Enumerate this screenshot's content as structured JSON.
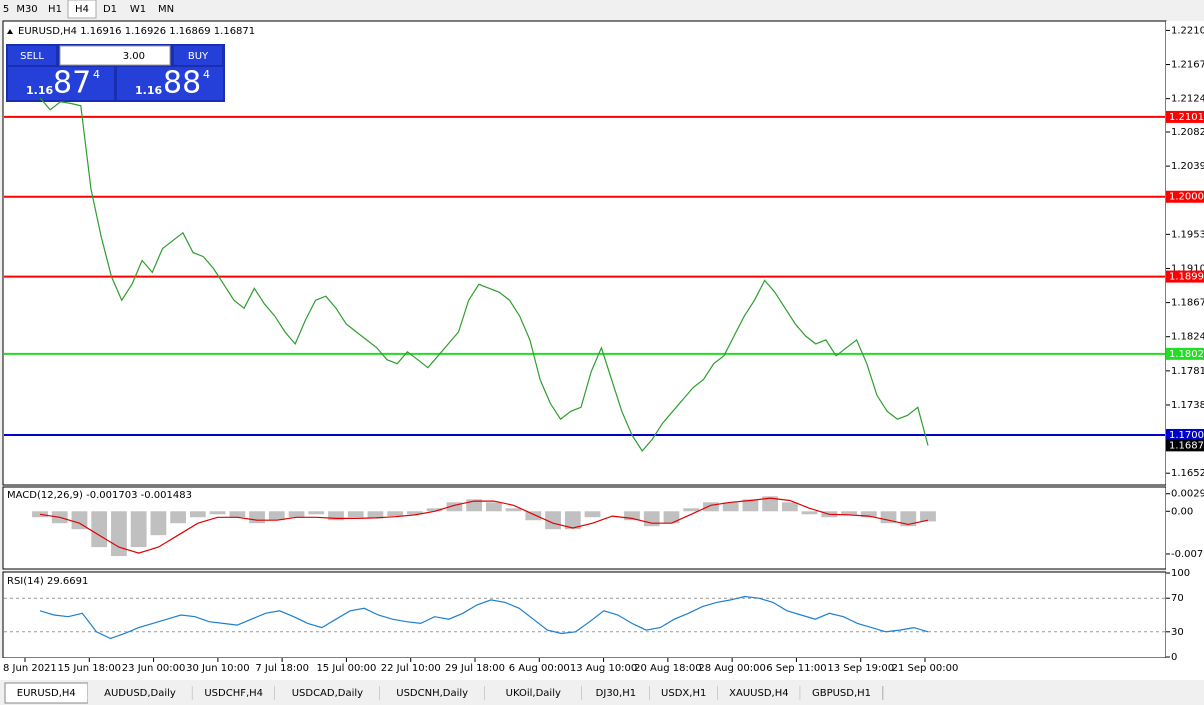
{
  "toolbar": {
    "timeframes": [
      "5",
      "M30",
      "H1",
      "H4",
      "D1",
      "W1",
      "MN"
    ],
    "active": 3
  },
  "trade_panel": {
    "sell": "SELL",
    "buy": "BUY",
    "lot": "3.00",
    "sell_price": {
      "big": "1.16",
      "main": "87",
      "sup": "4"
    },
    "buy_price": {
      "big": "1.16",
      "main": "88",
      "sup": "4"
    }
  },
  "chart_data": [
    {
      "type": "line",
      "title": "EURUSD,H4  1.16916 1.16926 1.16869 1.16871",
      "color": "#2e9e2e",
      "values": [
        1.2125,
        1.211,
        1.212,
        1.2118,
        1.2115,
        1.201,
        1.195,
        1.19,
        1.187,
        1.189,
        1.192,
        1.1905,
        1.1935,
        1.1945,
        1.1955,
        1.193,
        1.1925,
        1.191,
        1.189,
        1.187,
        1.186,
        1.1885,
        1.1865,
        1.185,
        1.183,
        1.1815,
        1.1845,
        1.187,
        1.1875,
        1.186,
        1.184,
        1.183,
        1.182,
        1.181,
        1.1795,
        1.179,
        1.1805,
        1.1795,
        1.1785,
        1.18,
        1.1815,
        1.183,
        1.187,
        1.189,
        1.1885,
        1.188,
        1.187,
        1.185,
        1.182,
        1.177,
        1.174,
        1.172,
        1.173,
        1.1735,
        1.178,
        1.181,
        1.177,
        1.173,
        1.17,
        1.168,
        1.1695,
        1.1715,
        1.173,
        1.1745,
        1.176,
        1.177,
        1.179,
        1.18,
        1.1825,
        1.185,
        1.187,
        1.1895,
        1.188,
        1.186,
        1.184,
        1.1825,
        1.1815,
        1.182,
        1.18,
        1.181,
        1.182,
        1.179,
        1.175,
        1.173,
        1.172,
        1.1725,
        1.1735,
        1.1687
      ],
      "ylim": [
        1.16384,
        1.22206
      ],
      "yticks": [
        {
          "value": 1.221,
          "label": "1.22100"
        },
        {
          "value": 1.2167,
          "label": "1.21670"
        },
        {
          "value": 1.2124,
          "label": "1.21240"
        },
        {
          "value": 1.2082,
          "label": "1.20820"
        },
        {
          "value": 1.2039,
          "label": "1.20390"
        },
        {
          "value": 1.1953,
          "label": "1.19530"
        },
        {
          "value": 1.191,
          "label": "1.19100"
        },
        {
          "value": 1.1867,
          "label": "1.18670"
        },
        {
          "value": 1.1824,
          "label": "1.18240"
        },
        {
          "value": 1.1781,
          "label": "1.17810"
        },
        {
          "value": 1.1738,
          "label": "1.17380"
        },
        {
          "value": 1.1652,
          "label": "1.16520"
        }
      ],
      "levels": [
        {
          "value": 1.2101,
          "label": "1.21010",
          "color": "#ff0000"
        },
        {
          "value": 1.20004,
          "label": "1.20004",
          "color": "#ff0000"
        },
        {
          "value": 1.18998,
          "label": "1.18998",
          "color": "#ff0000"
        },
        {
          "value": 1.18024,
          "label": "1.18024",
          "color": "#22dd22"
        },
        {
          "value": 1.17002,
          "label": "1.17002",
          "color": "#0000cc"
        },
        {
          "value": 1.16871,
          "label": "1.16871",
          "color": "#000000"
        }
      ],
      "grid": false
    },
    {
      "type": "histogram-line",
      "title": "MACD(12,26,9) -0.001703 -0.001483",
      "color": "#c0c0c0",
      "values": [
        -0.001,
        -0.002,
        -0.003,
        -0.006,
        -0.0075,
        -0.006,
        -0.004,
        -0.002,
        -0.001,
        -0.0005,
        -0.001,
        -0.002,
        -0.0015,
        -0.001,
        -0.0005,
        -0.0015,
        -0.001,
        -0.0012,
        -0.0008,
        -0.0005,
        0.0005,
        0.0015,
        0.002,
        0.0015,
        0.0005,
        -0.0015,
        -0.003,
        -0.003,
        -0.001,
        0.0,
        -0.0015,
        -0.0025,
        -0.002,
        0.0005,
        0.0015,
        0.0015,
        0.002,
        0.0025,
        0.0015,
        -0.0005,
        -0.001,
        -0.0005,
        -0.001,
        -0.002,
        -0.0025,
        -0.0017
      ],
      "signal": {
        "color": "#e00000",
        "values": [
          -0.0005,
          -0.001,
          -0.002,
          -0.004,
          -0.006,
          -0.007,
          -0.006,
          -0.004,
          -0.002,
          -0.001,
          -0.001,
          -0.0015,
          -0.0015,
          -0.001,
          -0.001,
          -0.0012,
          -0.0012,
          -0.0011,
          -0.0009,
          -0.0006,
          0.0,
          0.001,
          0.0017,
          0.0017,
          0.001,
          -0.0005,
          -0.002,
          -0.0028,
          -0.002,
          -0.0008,
          -0.0012,
          -0.002,
          -0.002,
          -0.0005,
          0.001,
          0.0015,
          0.0018,
          0.0022,
          0.0018,
          0.0005,
          -0.0005,
          -0.0006,
          -0.0008,
          -0.0015,
          -0.0022,
          -0.0015
        ]
      },
      "ylim": [
        -0.0095,
        0.0039
      ],
      "yticks": [
        0.00294,
        {
          "value": 0,
          "label": "0.00"
        },
        -0.00715
      ],
      "grid": false
    },
    {
      "type": "line",
      "title": "RSI(14) 29.6691",
      "color": "#1e7fd0",
      "values": [
        55,
        50,
        48,
        52,
        30,
        22,
        28,
        35,
        40,
        45,
        50,
        48,
        42,
        40,
        38,
        45,
        52,
        55,
        48,
        40,
        35,
        45,
        55,
        58,
        50,
        45,
        42,
        40,
        48,
        45,
        52,
        62,
        68,
        65,
        58,
        45,
        32,
        28,
        30,
        42,
        55,
        50,
        40,
        32,
        35,
        45,
        52,
        60,
        65,
        68,
        72,
        70,
        65,
        55,
        50,
        45,
        52,
        48,
        40,
        35,
        30,
        32,
        35,
        30
      ],
      "ylim": [
        0,
        100
      ],
      "yticks": [
        0,
        30,
        70,
        100
      ],
      "grid": true
    }
  ],
  "time_axis": [
    "8 Jun 2021",
    "15 Jun 18:00",
    "23 Jun 00:00",
    "30 Jun 10:00",
    "7 Jul 18:00",
    "15 Jul 00:00",
    "22 Jul 10:00",
    "29 Jul 18:00",
    "6 Aug 00:00",
    "13 Aug 10:00",
    "20 Aug 18:00",
    "28 Aug 00:00",
    "6 Sep 11:00",
    "13 Sep 19:00",
    "21 Sep 00:00"
  ],
  "tabs": {
    "items": [
      "EURUSD,H4",
      "AUDUSD,Daily",
      "USDCHF,H4",
      "USDCAD,Daily",
      "USDCNH,Daily",
      "UKOil,Daily",
      "DJ30,H1",
      "USDX,H1",
      "XAUUSD,H4",
      "GBPUSD,H1"
    ],
    "active": 0
  }
}
